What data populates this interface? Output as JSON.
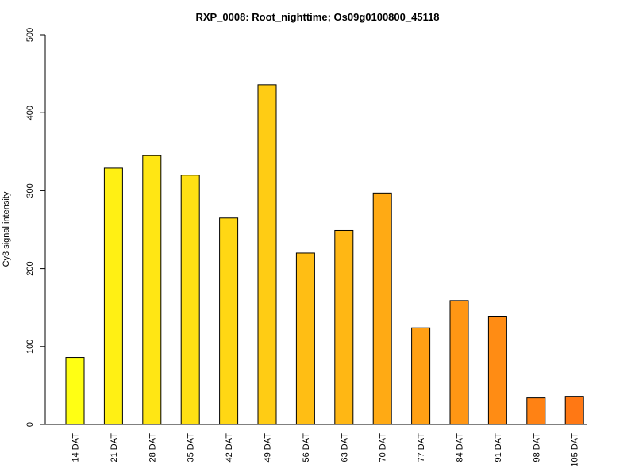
{
  "chart_data": {
    "type": "bar",
    "title": "RXP_0008: Root_nighttime; Os09g0100800_45118",
    "xlabel": "",
    "ylabel": "Cy3 signal intensity",
    "ylim": [
      0,
      500
    ],
    "yticks": [
      0,
      100,
      200,
      300,
      400,
      500
    ],
    "grid": false,
    "categories": [
      "14 DAT",
      "21 DAT",
      "28 DAT",
      "35 DAT",
      "42 DAT",
      "49 DAT",
      "56 DAT",
      "63 DAT",
      "70 DAT",
      "77 DAT",
      "84 DAT",
      "91 DAT",
      "98 DAT",
      "105 DAT"
    ],
    "values": [
      86,
      329,
      345,
      320,
      265,
      436,
      220,
      249,
      297,
      124,
      159,
      139,
      34,
      36
    ],
    "colors": [
      "#ffff14",
      "#fff014",
      "#ffe614",
      "#ffe014",
      "#ffd714",
      "#ffcc14",
      "#ffbe14",
      "#ffb714",
      "#ffaa14",
      "#ffa014",
      "#ff9614",
      "#ff8c14",
      "#ff8214",
      "#ff7814"
    ]
  }
}
